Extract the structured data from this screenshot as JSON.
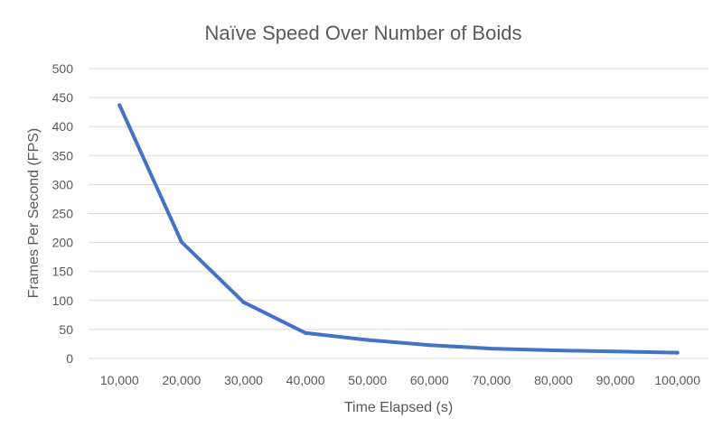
{
  "chart_data": {
    "type": "line",
    "title": "Naïve Speed Over Number of Boids",
    "xlabel": "Time Elapsed (s)",
    "ylabel": "Frames Per Second (FPS)",
    "categories": [
      "10,000",
      "20,000",
      "30,000",
      "40,000",
      "50,000",
      "60,000",
      "70,000",
      "80,000",
      "90,000",
      "100,000"
    ],
    "x": [
      10000,
      20000,
      30000,
      40000,
      50000,
      60000,
      70000,
      80000,
      90000,
      100000
    ],
    "series": [
      {
        "values": [
          437,
          201,
          97,
          44,
          32,
          23,
          17,
          14,
          12,
          10
        ],
        "color": "#4472c4"
      }
    ],
    "ylim": [
      0,
      500
    ],
    "yticks": [
      "0",
      "50",
      "100",
      "150",
      "200",
      "250",
      "300",
      "350",
      "400",
      "450",
      "500"
    ],
    "grid": true,
    "legend": "none"
  }
}
